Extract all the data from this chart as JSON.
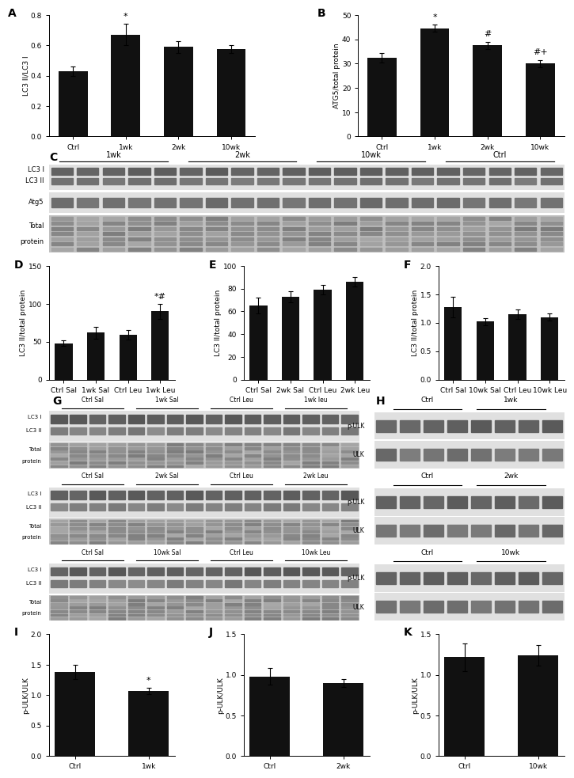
{
  "panel_A": {
    "categories": [
      "Ctrl",
      "1wk",
      "2wk",
      "10wk"
    ],
    "values": [
      0.43,
      0.67,
      0.59,
      0.575
    ],
    "errors": [
      0.03,
      0.07,
      0.04,
      0.025
    ],
    "ylabel": "LC3 II/LC3 I",
    "ylim": [
      0.0,
      0.8
    ],
    "yticks": [
      0.0,
      0.2,
      0.4,
      0.6,
      0.8
    ],
    "sig_labels": [
      "",
      "*",
      "",
      ""
    ]
  },
  "panel_B": {
    "categories": [
      "Ctrl",
      "1wk",
      "2wk",
      "10wk"
    ],
    "values": [
      32.5,
      44.5,
      37.5,
      30.0
    ],
    "errors": [
      2.0,
      1.5,
      1.5,
      1.5
    ],
    "ylabel": "ATG5/total protein",
    "ylim": [
      0,
      50
    ],
    "yticks": [
      0,
      10,
      20,
      30,
      40,
      50
    ],
    "sig_labels": [
      "",
      "*",
      "#",
      "#+"
    ]
  },
  "panel_D": {
    "categories": [
      "Ctrl Sal",
      "1wk Sal",
      "Ctrl Leu",
      "1wk Leu"
    ],
    "values": [
      48,
      62,
      59,
      90
    ],
    "errors": [
      4,
      8,
      6,
      10
    ],
    "ylabel": "LC3 II/total protein",
    "ylim": [
      0,
      150
    ],
    "yticks": [
      0,
      50,
      100,
      150
    ],
    "sig_labels": [
      "",
      "",
      "",
      "*#"
    ]
  },
  "panel_E": {
    "categories": [
      "Ctrl Sal",
      "2wk Sal",
      "Ctrl Leu",
      "2wk Leu"
    ],
    "values": [
      65,
      73,
      79,
      86
    ],
    "errors": [
      7,
      5,
      4,
      4
    ],
    "ylabel": "LC3 II/total protein",
    "ylim": [
      0,
      100
    ],
    "yticks": [
      0,
      20,
      40,
      60,
      80,
      100
    ],
    "sig_labels": [
      "",
      "",
      "",
      ""
    ]
  },
  "panel_F": {
    "categories": [
      "Ctrl Sal",
      "10wk Sal",
      "Ctrl Leu",
      "10wk Leu"
    ],
    "values": [
      1.28,
      1.02,
      1.15,
      1.1
    ],
    "errors": [
      0.18,
      0.06,
      0.08,
      0.06
    ],
    "ylabel": "LC3 II/total protein",
    "ylim": [
      0.0,
      2.0
    ],
    "yticks": [
      0.0,
      0.5,
      1.0,
      1.5,
      2.0
    ],
    "sig_labels": [
      "",
      "",
      "",
      ""
    ]
  },
  "panel_I": {
    "categories": [
      "Ctrl",
      "1wk"
    ],
    "values": [
      1.38,
      1.07
    ],
    "errors": [
      0.12,
      0.05
    ],
    "ylabel": "p-ULK/ULK",
    "ylim": [
      0.0,
      2.0
    ],
    "yticks": [
      0.0,
      0.5,
      1.0,
      1.5,
      2.0
    ],
    "sig_labels": [
      "",
      "*"
    ]
  },
  "panel_J": {
    "categories": [
      "Ctrl",
      "2wk"
    ],
    "values": [
      0.98,
      0.9
    ],
    "errors": [
      0.1,
      0.05
    ],
    "ylabel": "p-ULK/ULK",
    "ylim": [
      0.0,
      1.5
    ],
    "yticks": [
      0.0,
      0.5,
      1.0,
      1.5
    ],
    "sig_labels": [
      "",
      ""
    ]
  },
  "panel_K": {
    "categories": [
      "Ctrl",
      "10wk"
    ],
    "values": [
      1.22,
      1.24
    ],
    "errors": [
      0.17,
      0.13
    ],
    "ylabel": "p-ULK/ULK",
    "ylim": [
      0.0,
      1.5
    ],
    "yticks": [
      0.0,
      0.5,
      1.0,
      1.5
    ],
    "sig_labels": [
      "",
      ""
    ]
  },
  "bar_color": "#111111",
  "bar_width": 0.55,
  "label_fontsize": 6.5,
  "tick_fontsize": 6.5,
  "panel_label_fontsize": 10,
  "blot_bg": 0.88,
  "blot_band_dark": 0.45,
  "blot_band_light": 0.62
}
